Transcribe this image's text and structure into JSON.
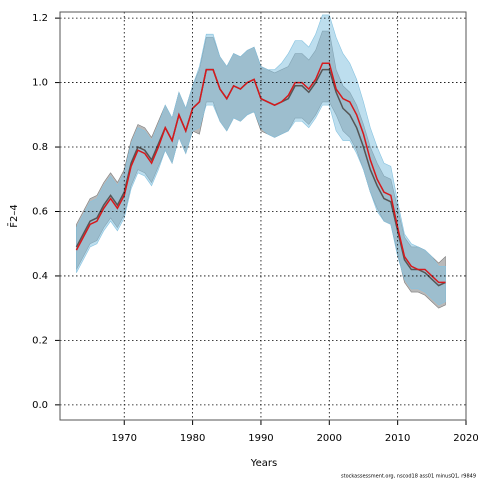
{
  "chart_data": {
    "type": "line",
    "xlabel": "Years",
    "ylabel": "F̄2–4",
    "footnote": "stockassessment.org, nscod18 ass01 minusQ1, r9849",
    "x": [
      1963,
      1964,
      1965,
      1966,
      1967,
      1968,
      1969,
      1970,
      1971,
      1972,
      1973,
      1974,
      1975,
      1976,
      1977,
      1978,
      1979,
      1980,
      1981,
      1982,
      1983,
      1984,
      1985,
      1986,
      1987,
      1988,
      1989,
      1990,
      1991,
      1992,
      1993,
      1994,
      1995,
      1996,
      1997,
      1998,
      1999,
      2000,
      2001,
      2002,
      2003,
      2004,
      2005,
      2006,
      2007,
      2008,
      2009,
      2010,
      2011,
      2012,
      2013,
      2014,
      2015,
      2016,
      2017
    ],
    "series": [
      {
        "color": "#555555",
        "band_color": "#7f7f7f",
        "values": [
          0.49,
          0.53,
          0.57,
          0.58,
          0.62,
          0.65,
          0.62,
          0.66,
          0.75,
          0.8,
          0.79,
          0.76,
          0.81,
          0.86,
          0.82,
          0.9,
          0.85,
          0.92,
          0.94,
          1.04,
          1.04,
          0.98,
          0.95,
          0.99,
          0.98,
          1.0,
          1.01,
          0.95,
          0.94,
          0.93,
          0.94,
          0.95,
          0.99,
          0.99,
          0.97,
          1.0,
          1.04,
          1.04,
          0.97,
          0.92,
          0.9,
          0.86,
          0.8,
          0.73,
          0.68,
          0.64,
          0.63,
          0.54,
          0.45,
          0.42,
          0.42,
          0.41,
          0.39,
          0.37,
          0.38
        ],
        "upper": [
          0.56,
          0.6,
          0.64,
          0.65,
          0.69,
          0.72,
          0.69,
          0.73,
          0.82,
          0.87,
          0.86,
          0.83,
          0.88,
          0.93,
          0.89,
          0.97,
          0.92,
          0.99,
          1.04,
          1.14,
          1.14,
          1.08,
          1.05,
          1.09,
          1.08,
          1.1,
          1.11,
          1.05,
          1.04,
          1.03,
          1.04,
          1.05,
          1.09,
          1.09,
          1.07,
          1.1,
          1.16,
          1.16,
          1.04,
          0.99,
          0.97,
          0.93,
          0.87,
          0.8,
          0.75,
          0.71,
          0.7,
          0.61,
          0.52,
          0.49,
          0.49,
          0.48,
          0.46,
          0.44,
          0.46
        ],
        "lower": [
          0.42,
          0.46,
          0.5,
          0.51,
          0.55,
          0.58,
          0.55,
          0.59,
          0.68,
          0.73,
          0.72,
          0.69,
          0.74,
          0.79,
          0.75,
          0.83,
          0.78,
          0.85,
          0.84,
          0.94,
          0.94,
          0.88,
          0.85,
          0.89,
          0.88,
          0.9,
          0.91,
          0.85,
          0.84,
          0.83,
          0.84,
          0.85,
          0.89,
          0.89,
          0.87,
          0.9,
          0.94,
          0.94,
          0.9,
          0.85,
          0.83,
          0.79,
          0.73,
          0.66,
          0.61,
          0.57,
          0.56,
          0.47,
          0.38,
          0.35,
          0.35,
          0.34,
          0.32,
          0.3,
          0.31
        ]
      },
      {
        "color": "#d7191c",
        "band_color": "#87c3e0",
        "values": [
          0.48,
          0.52,
          0.56,
          0.57,
          0.61,
          0.64,
          0.61,
          0.65,
          0.74,
          0.79,
          0.78,
          0.75,
          0.8,
          0.86,
          0.82,
          0.9,
          0.85,
          0.92,
          0.94,
          1.04,
          1.04,
          0.98,
          0.95,
          0.99,
          0.98,
          1.0,
          1.01,
          0.95,
          0.94,
          0.93,
          0.94,
          0.96,
          1.0,
          1.0,
          0.98,
          1.01,
          1.06,
          1.06,
          0.98,
          0.95,
          0.94,
          0.9,
          0.84,
          0.76,
          0.7,
          0.66,
          0.65,
          0.55,
          0.46,
          0.43,
          0.42,
          0.42,
          0.4,
          0.38,
          0.38
        ],
        "upper": [
          0.55,
          0.59,
          0.63,
          0.64,
          0.68,
          0.71,
          0.68,
          0.72,
          0.81,
          0.86,
          0.85,
          0.82,
          0.87,
          0.93,
          0.89,
          0.97,
          0.92,
          0.99,
          1.05,
          1.15,
          1.15,
          1.08,
          1.05,
          1.09,
          1.08,
          1.1,
          1.11,
          1.05,
          1.04,
          1.04,
          1.06,
          1.09,
          1.13,
          1.13,
          1.11,
          1.15,
          1.21,
          1.21,
          1.14,
          1.09,
          1.06,
          1.01,
          0.94,
          0.86,
          0.8,
          0.75,
          0.74,
          0.63,
          0.53,
          0.5,
          0.49,
          0.48,
          0.46,
          0.43,
          0.43
        ],
        "lower": [
          0.41,
          0.45,
          0.49,
          0.5,
          0.54,
          0.57,
          0.54,
          0.58,
          0.67,
          0.72,
          0.71,
          0.68,
          0.73,
          0.79,
          0.75,
          0.83,
          0.78,
          0.85,
          0.86,
          0.93,
          0.93,
          0.88,
          0.85,
          0.89,
          0.88,
          0.9,
          0.91,
          0.86,
          0.84,
          0.83,
          0.84,
          0.85,
          0.88,
          0.88,
          0.86,
          0.89,
          0.93,
          0.93,
          0.85,
          0.82,
          0.82,
          0.78,
          0.73,
          0.66,
          0.6,
          0.57,
          0.56,
          0.46,
          0.39,
          0.36,
          0.36,
          0.35,
          0.33,
          0.31,
          0.32
        ]
      }
    ],
    "xlim": [
      1960.6,
      2020
    ],
    "xticks": [
      1970,
      1980,
      1990,
      2000,
      2010,
      2020
    ],
    "ylim": [
      -0.047,
      1.219
    ],
    "yticks": [
      {
        "value": 0,
        "label": "0.0"
      },
      0.2,
      0.4,
      0.6,
      0.8,
      {
        "value": 1,
        "label": "1.0"
      },
      1.2
    ],
    "grid": true
  }
}
